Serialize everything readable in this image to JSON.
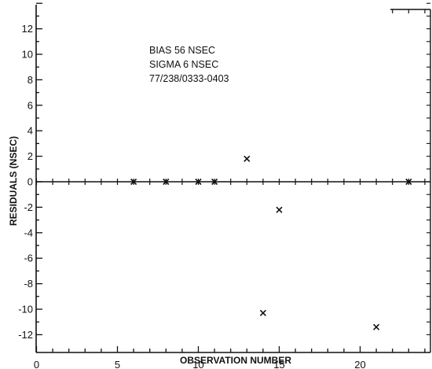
{
  "chart_data": {
    "type": "scatter",
    "title": "",
    "xlabel": "OBSERVATION NUMBER",
    "ylabel": "RESIDUALS (NSEC)",
    "xlim": [
      0,
      24
    ],
    "ylim": [
      -12,
      14
    ],
    "x_ticks": [
      0,
      5,
      10,
      15,
      20
    ],
    "x_tick_labels": [
      "0",
      "5",
      "10",
      "15",
      "20"
    ],
    "y_ticks": [
      12,
      10,
      8,
      6,
      4,
      2,
      0,
      -2,
      -4,
      -6,
      -8,
      -10,
      -12
    ],
    "y_tick_labels": [
      "12",
      "10",
      "8",
      "6",
      "4",
      "2",
      "0",
      "-2",
      "-4",
      "-6",
      "-8",
      "-10",
      "-12"
    ],
    "marker": "x",
    "grid": false,
    "annotations": [
      "BIAS  56 NSEC",
      "SIGMA 6 NSEC",
      "77/238/0333-0403"
    ],
    "series": [
      {
        "x": [
          6,
          8,
          10,
          11,
          13,
          14,
          15,
          21,
          23
        ],
        "y": [
          0,
          0,
          0,
          0,
          1.8,
          -10.3,
          -2.2,
          -11.4,
          0
        ]
      }
    ]
  }
}
